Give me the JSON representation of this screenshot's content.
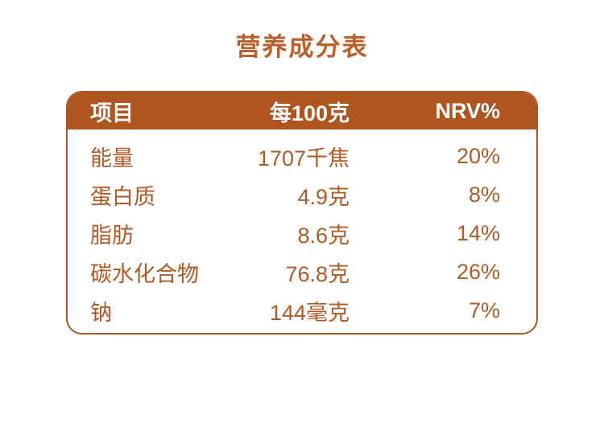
{
  "title": "营养成分表",
  "colors": {
    "accent": "#AE5520",
    "body_text": "#B25A26",
    "title_text": "#BB5F2B",
    "header_text": "#FFFFFF",
    "background": "#FFFFFF"
  },
  "table": {
    "headers": [
      "项目",
      "每100克",
      "NRV%"
    ],
    "rows": [
      {
        "item": "能量",
        "per_100g": "1707千焦",
        "nrv": "20%"
      },
      {
        "item": "蛋白质",
        "per_100g": "4.9克",
        "nrv": "8%"
      },
      {
        "item": "脂肪",
        "per_100g": "8.6克",
        "nrv": "14%"
      },
      {
        "item": "碳水化合物",
        "per_100g": "76.8克",
        "nrv": "26%"
      },
      {
        "item": "钠",
        "per_100g": "144毫克",
        "nrv": "7%"
      }
    ]
  }
}
